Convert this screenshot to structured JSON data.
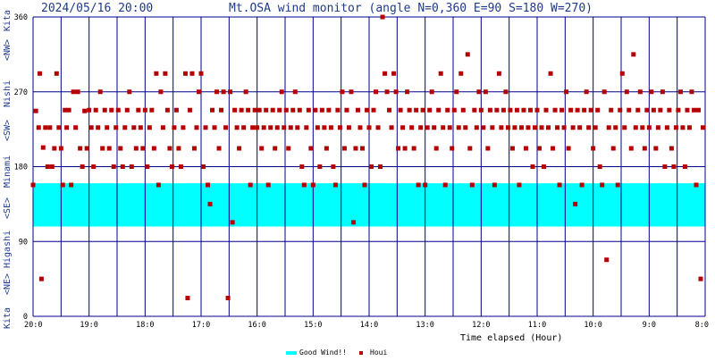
{
  "header": {
    "timestamp": "2024/05/16 20:00",
    "title": "Mt.OSA wind monitor (angle N=0,360 E=90 S=180 W=270)"
  },
  "colors": {
    "grid": "#00008b",
    "good_band": "#00ffff",
    "points": "#b40000",
    "header_text": "#1f3a8a"
  },
  "chart_data": {
    "type": "scatter",
    "title": "Mt.OSA wind monitor (angle N=0,360 E=90 S=180 W=270)",
    "xlabel": "Time elapsed (Hour)",
    "ylabel": "Kita <NE> Higashi <SE> Minami <SW> Nishi <NW> Kita",
    "y_axis_label_parts": [
      "Kita",
      "<NE>",
      "Higashi",
      "<SE>",
      "Minami",
      "<SW>",
      "Nishi",
      "<NW>",
      "Kita"
    ],
    "ylim": [
      0,
      360
    ],
    "y_ticks": [
      0,
      90,
      180,
      270,
      360
    ],
    "y_tick_labels": [
      "0",
      "90",
      "180",
      "270",
      "360"
    ],
    "x_tick_labels": [
      "20:0",
      "19:0",
      "18:0",
      "17:0",
      "16:0",
      "15:0",
      "14:0",
      "13:0",
      "12:0",
      "11:0",
      "10:0",
      "9:0",
      "8:0"
    ],
    "xlim_hours": [
      0,
      12
    ],
    "grid": true,
    "good_wind_band": {
      "from": 108,
      "to": 160
    },
    "legend_position": "bottom-center",
    "series": [
      {
        "name": "Good Wind!!",
        "kind": "band"
      },
      {
        "name": "Houi",
        "kind": "points"
      }
    ],
    "points": [
      [
        0.0,
        158
      ],
      [
        0.05,
        247
      ],
      [
        0.1,
        227
      ],
      [
        0.12,
        292
      ],
      [
        0.15,
        45
      ],
      [
        0.18,
        203
      ],
      [
        0.22,
        227
      ],
      [
        0.26,
        180
      ],
      [
        0.3,
        227
      ],
      [
        0.34,
        180
      ],
      [
        0.38,
        202
      ],
      [
        0.42,
        292
      ],
      [
        0.46,
        227
      ],
      [
        0.5,
        202
      ],
      [
        0.53,
        158
      ],
      [
        0.57,
        248
      ],
      [
        0.6,
        227
      ],
      [
        0.64,
        248
      ],
      [
        0.68,
        158
      ],
      [
        0.72,
        270
      ],
      [
        0.76,
        227
      ],
      [
        0.8,
        270
      ],
      [
        0.84,
        202
      ],
      [
        0.88,
        180
      ],
      [
        0.92,
        247
      ],
      [
        0.96,
        202
      ],
      [
        1.0,
        248
      ],
      [
        1.04,
        227
      ],
      [
        1.08,
        180
      ],
      [
        1.12,
        248
      ],
      [
        1.16,
        227
      ],
      [
        1.2,
        270
      ],
      [
        1.24,
        202
      ],
      [
        1.28,
        248
      ],
      [
        1.32,
        227
      ],
      [
        1.36,
        202
      ],
      [
        1.4,
        248
      ],
      [
        1.44,
        180
      ],
      [
        1.48,
        227
      ],
      [
        1.52,
        248
      ],
      [
        1.56,
        202
      ],
      [
        1.6,
        180
      ],
      [
        1.64,
        227
      ],
      [
        1.68,
        248
      ],
      [
        1.72,
        270
      ],
      [
        1.76,
        180
      ],
      [
        1.8,
        227
      ],
      [
        1.84,
        202
      ],
      [
        1.88,
        248
      ],
      [
        1.92,
        227
      ],
      [
        1.96,
        202
      ],
      [
        2.0,
        248
      ],
      [
        2.04,
        180
      ],
      [
        2.08,
        227
      ],
      [
        2.12,
        248
      ],
      [
        2.16,
        202
      ],
      [
        2.2,
        292
      ],
      [
        2.24,
        158
      ],
      [
        2.28,
        270
      ],
      [
        2.32,
        227
      ],
      [
        2.36,
        292
      ],
      [
        2.4,
        248
      ],
      [
        2.44,
        202
      ],
      [
        2.48,
        180
      ],
      [
        2.52,
        227
      ],
      [
        2.56,
        248
      ],
      [
        2.6,
        202
      ],
      [
        2.64,
        180
      ],
      [
        2.68,
        227
      ],
      [
        2.72,
        292
      ],
      [
        2.76,
        22
      ],
      [
        2.8,
        248
      ],
      [
        2.84,
        292
      ],
      [
        2.88,
        202
      ],
      [
        2.92,
        227
      ],
      [
        2.96,
        270
      ],
      [
        3.0,
        292
      ],
      [
        3.04,
        180
      ],
      [
        3.08,
        227
      ],
      [
        3.12,
        158
      ],
      [
        3.16,
        135
      ],
      [
        3.2,
        248
      ],
      [
        3.24,
        227
      ],
      [
        3.28,
        270
      ],
      [
        3.32,
        202
      ],
      [
        3.36,
        248
      ],
      [
        3.4,
        270
      ],
      [
        3.44,
        227
      ],
      [
        3.48,
        22
      ],
      [
        3.52,
        270
      ],
      [
        3.56,
        113
      ],
      [
        3.6,
        248
      ],
      [
        3.64,
        227
      ],
      [
        3.68,
        202
      ],
      [
        3.72,
        248
      ],
      [
        3.76,
        227
      ],
      [
        3.8,
        270
      ],
      [
        3.84,
        248
      ],
      [
        3.88,
        158
      ],
      [
        3.92,
        227
      ],
      [
        3.96,
        248
      ],
      [
        4.0,
        227
      ],
      [
        4.04,
        248
      ],
      [
        4.08,
        202
      ],
      [
        4.12,
        227
      ],
      [
        4.16,
        248
      ],
      [
        4.2,
        158
      ],
      [
        4.24,
        227
      ],
      [
        4.28,
        248
      ],
      [
        4.32,
        202
      ],
      [
        4.36,
        227
      ],
      [
        4.4,
        248
      ],
      [
        4.44,
        270
      ],
      [
        4.48,
        227
      ],
      [
        4.52,
        248
      ],
      [
        4.56,
        202
      ],
      [
        4.6,
        227
      ],
      [
        4.64,
        248
      ],
      [
        4.68,
        270
      ],
      [
        4.72,
        227
      ],
      [
        4.76,
        248
      ],
      [
        4.8,
        180
      ],
      [
        4.84,
        158
      ],
      [
        4.88,
        227
      ],
      [
        4.92,
        248
      ],
      [
        4.96,
        202
      ],
      [
        5.0,
        158
      ],
      [
        5.04,
        248
      ],
      [
        5.08,
        227
      ],
      [
        5.12,
        180
      ],
      [
        5.16,
        248
      ],
      [
        5.2,
        227
      ],
      [
        5.24,
        202
      ],
      [
        5.28,
        248
      ],
      [
        5.32,
        227
      ],
      [
        5.36,
        180
      ],
      [
        5.4,
        158
      ],
      [
        5.44,
        248
      ],
      [
        5.48,
        227
      ],
      [
        5.52,
        270
      ],
      [
        5.56,
        202
      ],
      [
        5.6,
        248
      ],
      [
        5.64,
        227
      ],
      [
        5.68,
        270
      ],
      [
        5.72,
        113
      ],
      [
        5.76,
        202
      ],
      [
        5.8,
        248
      ],
      [
        5.84,
        227
      ],
      [
        5.88,
        202
      ],
      [
        5.92,
        158
      ],
      [
        5.96,
        248
      ],
      [
        6.0,
        227
      ],
      [
        6.04,
        180
      ],
      [
        6.08,
        248
      ],
      [
        6.12,
        270
      ],
      [
        6.16,
        227
      ],
      [
        6.2,
        180
      ],
      [
        6.24,
        360
      ],
      [
        6.28,
        292
      ],
      [
        6.32,
        270
      ],
      [
        6.36,
        248
      ],
      [
        6.4,
        227
      ],
      [
        6.44,
        292
      ],
      [
        6.48,
        270
      ],
      [
        6.52,
        202
      ],
      [
        6.56,
        248
      ],
      [
        6.6,
        227
      ],
      [
        6.64,
        202
      ],
      [
        6.68,
        270
      ],
      [
        6.72,
        248
      ],
      [
        6.76,
        227
      ],
      [
        6.8,
        202
      ],
      [
        6.84,
        248
      ],
      [
        6.88,
        158
      ],
      [
        6.92,
        227
      ],
      [
        6.96,
        248
      ],
      [
        7.0,
        158
      ],
      [
        7.04,
        227
      ],
      [
        7.08,
        248
      ],
      [
        7.12,
        270
      ],
      [
        7.16,
        227
      ],
      [
        7.2,
        202
      ],
      [
        7.24,
        248
      ],
      [
        7.28,
        292
      ],
      [
        7.32,
        227
      ],
      [
        7.36,
        158
      ],
      [
        7.4,
        248
      ],
      [
        7.44,
        227
      ],
      [
        7.48,
        202
      ],
      [
        7.52,
        248
      ],
      [
        7.56,
        270
      ],
      [
        7.6,
        227
      ],
      [
        7.64,
        292
      ],
      [
        7.68,
        248
      ],
      [
        7.72,
        227
      ],
      [
        7.76,
        315
      ],
      [
        7.8,
        202
      ],
      [
        7.84,
        158
      ],
      [
        7.88,
        248
      ],
      [
        7.92,
        227
      ],
      [
        7.96,
        270
      ],
      [
        8.0,
        248
      ],
      [
        8.04,
        227
      ],
      [
        8.08,
        270
      ],
      [
        8.12,
        202
      ],
      [
        8.16,
        248
      ],
      [
        8.2,
        227
      ],
      [
        8.24,
        158
      ],
      [
        8.28,
        248
      ],
      [
        8.32,
        292
      ],
      [
        8.36,
        227
      ],
      [
        8.4,
        248
      ],
      [
        8.44,
        270
      ],
      [
        8.48,
        227
      ],
      [
        8.52,
        248
      ],
      [
        8.56,
        202
      ],
      [
        8.6,
        227
      ],
      [
        8.64,
        248
      ],
      [
        8.68,
        158
      ],
      [
        8.72,
        227
      ],
      [
        8.76,
        248
      ],
      [
        8.8,
        202
      ],
      [
        8.84,
        227
      ],
      [
        8.88,
        248
      ],
      [
        8.92,
        180
      ],
      [
        8.96,
        227
      ],
      [
        9.0,
        248
      ],
      [
        9.04,
        202
      ],
      [
        9.08,
        227
      ],
      [
        9.12,
        180
      ],
      [
        9.16,
        248
      ],
      [
        9.2,
        227
      ],
      [
        9.24,
        292
      ],
      [
        9.28,
        202
      ],
      [
        9.32,
        248
      ],
      [
        9.36,
        227
      ],
      [
        9.4,
        158
      ],
      [
        9.44,
        248
      ],
      [
        9.48,
        227
      ],
      [
        9.52,
        270
      ],
      [
        9.56,
        202
      ],
      [
        9.6,
        248
      ],
      [
        9.64,
        227
      ],
      [
        9.68,
        135
      ],
      [
        9.72,
        248
      ],
      [
        9.76,
        227
      ],
      [
        9.8,
        158
      ],
      [
        9.84,
        248
      ],
      [
        9.88,
        270
      ],
      [
        9.92,
        227
      ],
      [
        9.96,
        248
      ],
      [
        10.0,
        202
      ],
      [
        10.04,
        227
      ],
      [
        10.08,
        248
      ],
      [
        10.12,
        180
      ],
      [
        10.16,
        158
      ],
      [
        10.2,
        270
      ],
      [
        10.24,
        68
      ],
      [
        10.28,
        227
      ],
      [
        10.32,
        248
      ],
      [
        10.36,
        202
      ],
      [
        10.4,
        227
      ],
      [
        10.44,
        158
      ],
      [
        10.48,
        248
      ],
      [
        10.52,
        292
      ],
      [
        10.56,
        227
      ],
      [
        10.6,
        270
      ],
      [
        10.64,
        248
      ],
      [
        10.68,
        202
      ],
      [
        10.72,
        315
      ],
      [
        10.76,
        227
      ],
      [
        10.8,
        248
      ],
      [
        10.84,
        270
      ],
      [
        10.88,
        227
      ],
      [
        10.92,
        202
      ],
      [
        10.96,
        248
      ],
      [
        11.0,
        227
      ],
      [
        11.04,
        270
      ],
      [
        11.08,
        248
      ],
      [
        11.12,
        202
      ],
      [
        11.16,
        227
      ],
      [
        11.2,
        248
      ],
      [
        11.24,
        270
      ],
      [
        11.28,
        180
      ],
      [
        11.32,
        227
      ],
      [
        11.36,
        248
      ],
      [
        11.4,
        202
      ],
      [
        11.44,
        180
      ],
      [
        11.48,
        227
      ],
      [
        11.52,
        248
      ],
      [
        11.56,
        270
      ],
      [
        11.6,
        227
      ],
      [
        11.64,
        180
      ],
      [
        11.68,
        248
      ],
      [
        11.72,
        227
      ],
      [
        11.76,
        270
      ],
      [
        11.8,
        248
      ],
      [
        11.84,
        158
      ],
      [
        11.88,
        248
      ],
      [
        11.92,
        45
      ],
      [
        11.96,
        227
      ]
    ]
  },
  "legend": {
    "good_wind_label": "Good Wind!!",
    "houi_label": "Houi"
  }
}
